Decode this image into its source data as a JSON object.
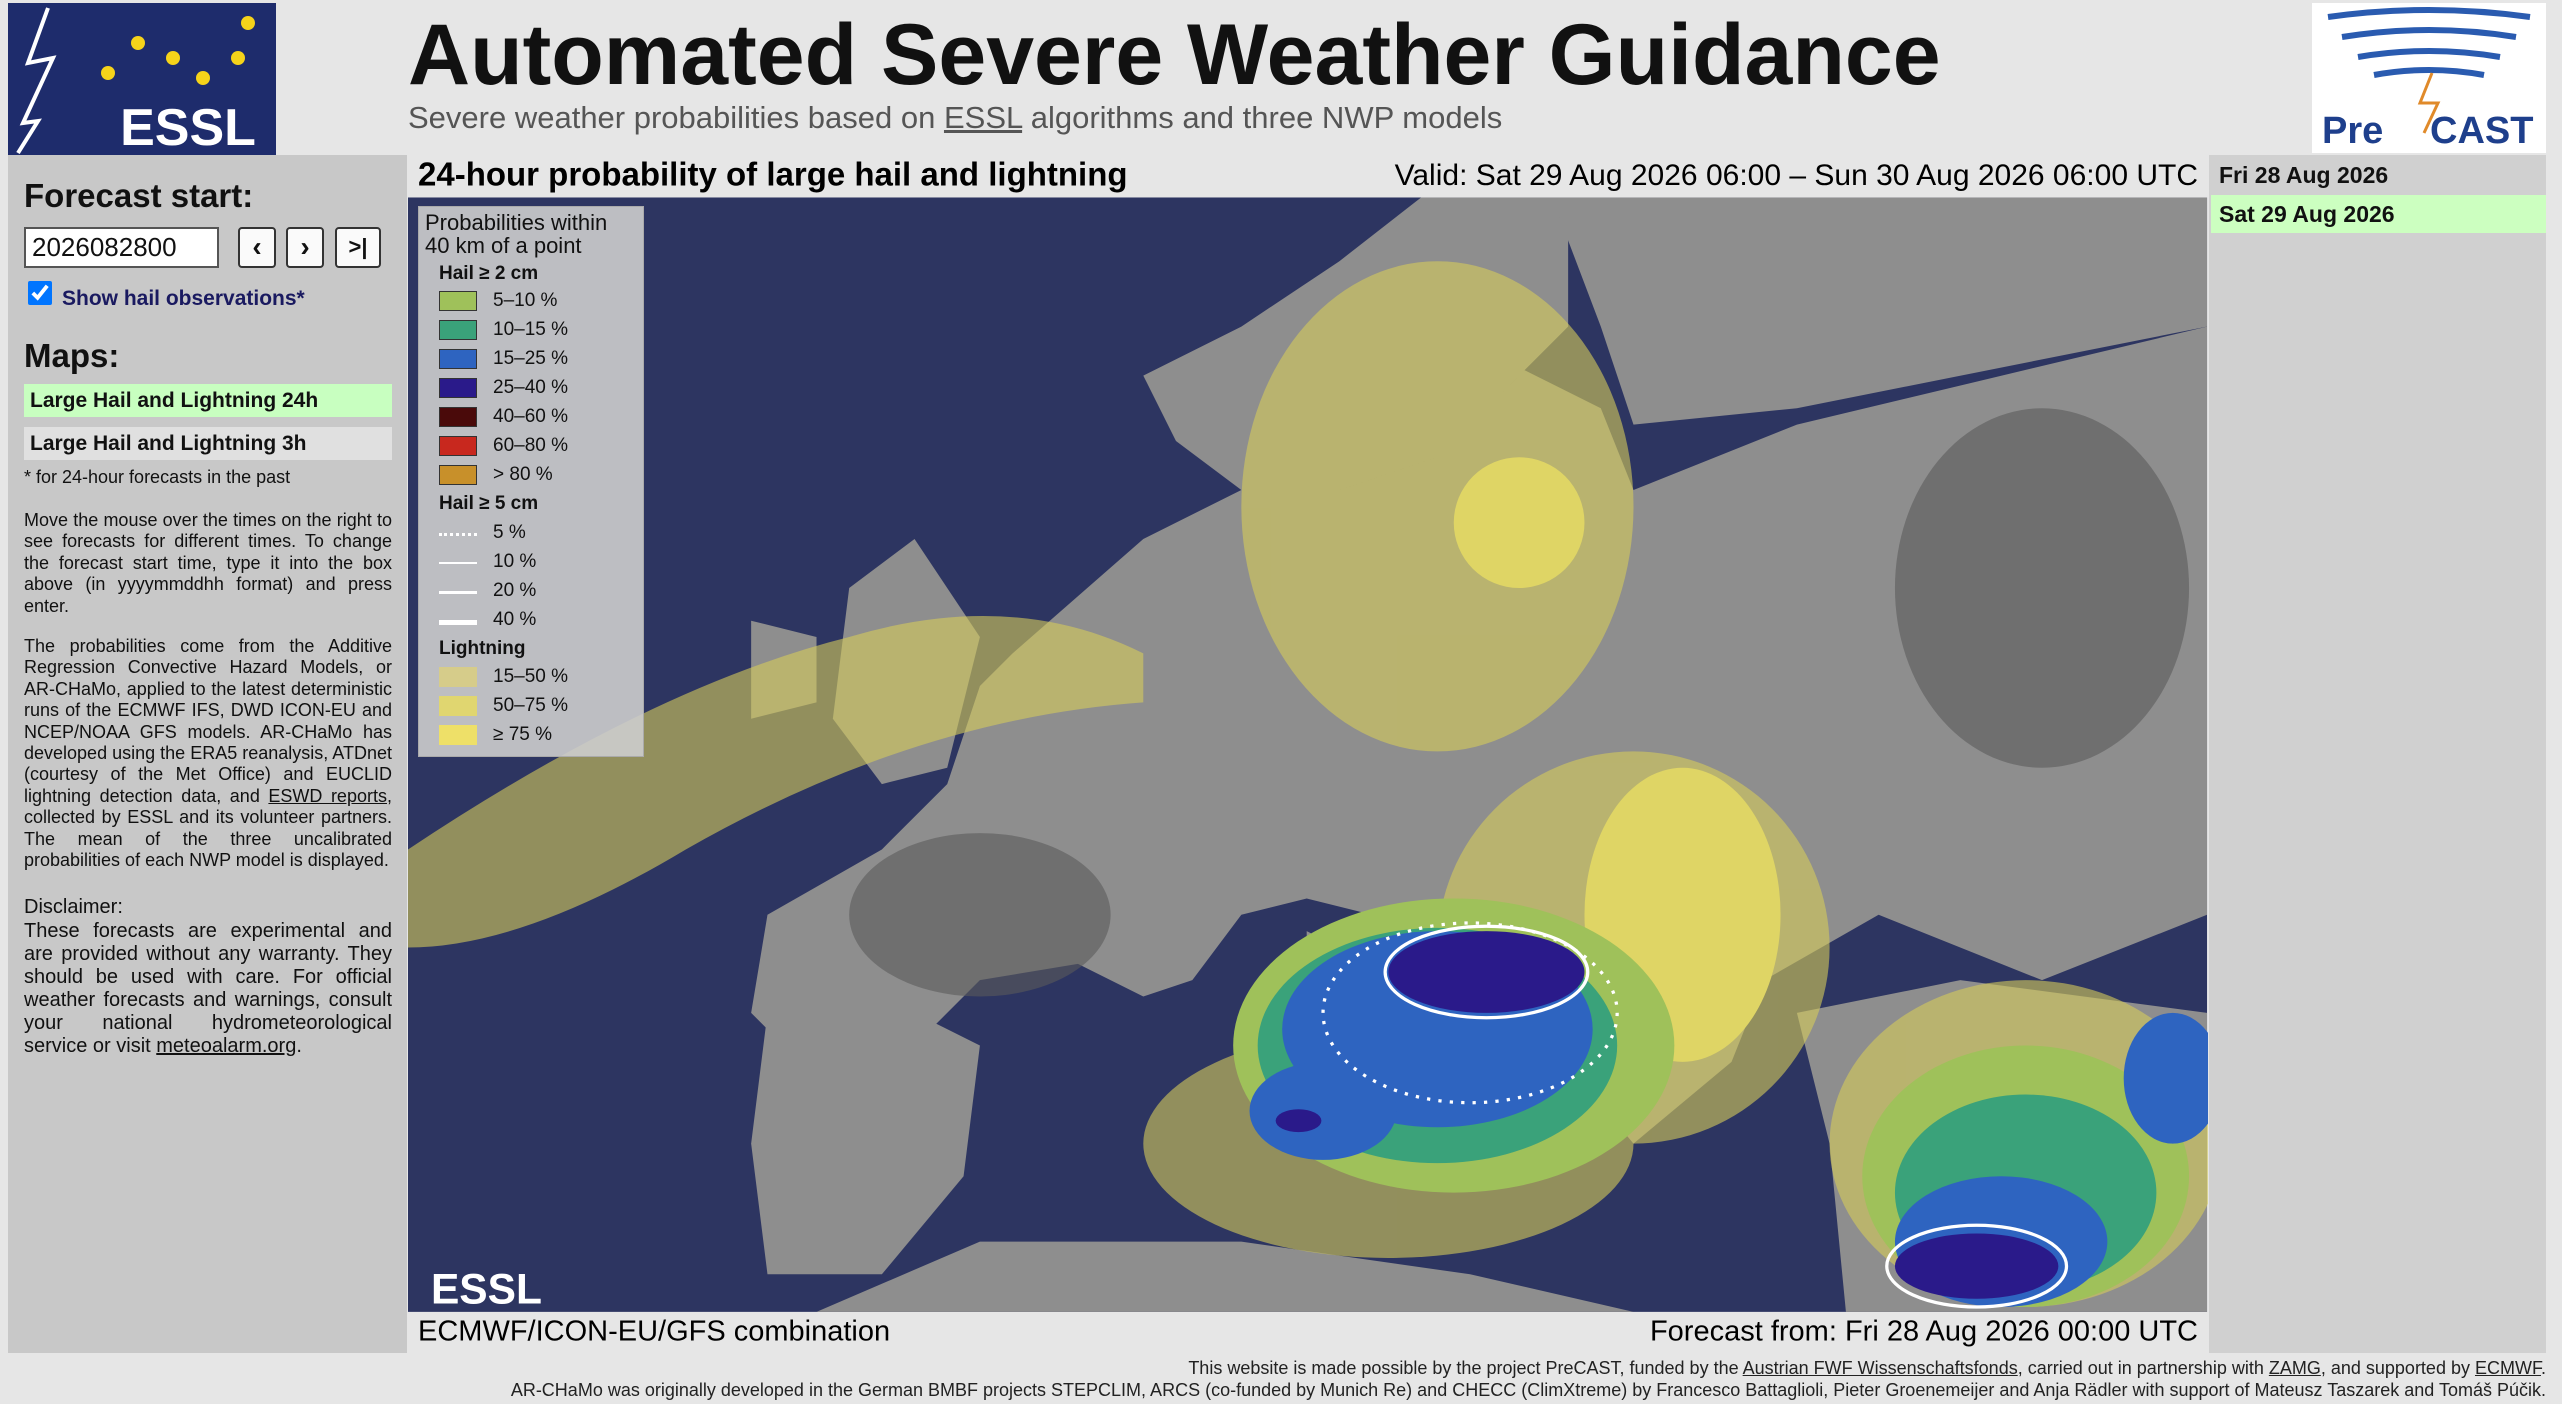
{
  "header": {
    "title": "Automated Severe Weather Guidance",
    "subtitle": {
      "before": "Severe weather probabilities based on",
      "link": "ESSL",
      "after": "algorithms and three NWP models"
    },
    "logo_left": "ESSL",
    "logo_right": {
      "first": "Pre",
      "second": "CAST"
    }
  },
  "sidebar": {
    "forecast_start_label": "Forecast start:",
    "forecast_start_value": "2026082800",
    "nav_buttons": [
      "‹",
      "›",
      ">|"
    ],
    "show_hail_label": "Show hail observations*",
    "maps_heading": "Maps:",
    "maps": [
      "Large Hail and Lightning 24h",
      "Large Hail and Lightning 3h"
    ],
    "footnote": "* for 24-hour forecasts in the past",
    "help_text": "Move the mouse over the times on the right to see forecasts for different times. To change the forecast start time, type it into the box above (in yyyymmddhh format) and press enter.",
    "about": {
      "before": "The probabilities come from the Additive Regression Convective Hazard Models, or AR-CHaMo, applied to the latest deterministic runs of the ECMWF IFS, DWD ICON-EU and NCEP/NOAA GFS models. AR-CHaMo has developed using the ERA5 reanalysis, ATDnet (courtesy of the Met Office) and EUCLID lightning detection data, and",
      "link": "ESWD reports",
      "after": ", collected by ESSL and its volunteer partners. The mean of the three uncalibrated probabilities of each NWP model is displayed."
    },
    "disclaimer_heading": "Disclaimer:",
    "disclaimer": {
      "before": "These forecasts are experimental and are provided without any warranty. They should be used with care. For official weather forecasts and warnings, consult your national hydrometeorological service or visit",
      "link": "meteoalarm.org",
      "after": "."
    }
  },
  "map": {
    "title": "24-hour probability of large hail and lightning",
    "valid": "Valid: Sat 29 Aug 2026 06:00 – Sun 30 Aug 2026 06:00 UTC",
    "model": "ECMWF/ICON-EU/GFS combination",
    "forecast_from": "Forecast from: Fri 28 Aug 2026 00:00 UTC",
    "watermark": "ESSL",
    "legend": {
      "title": [
        "Probabilities within",
        "40 km of a point"
      ],
      "hail2": {
        "heading": "Hail ≥ 2 cm",
        "items": [
          "5–10 %",
          "10–15 %",
          "15–25 %",
          "25–40 %",
          "40–60 %",
          "60–80 %",
          "> 80 %"
        ]
      },
      "hail5": {
        "heading": "Hail ≥ 5 cm",
        "items": [
          "5 %",
          "10 %",
          "20 %",
          "40 %"
        ]
      },
      "lightning": {
        "heading": "Lightning",
        "items": [
          "15–50 %",
          "50–75 %",
          "≥ 75 %"
        ]
      }
    }
  },
  "dates": [
    "Fri 28 Aug 2026",
    "Sat 29 Aug 2026"
  ],
  "footer": {
    "line1": {
      "a": "This website is made possible by the project PreCAST, funded by the",
      "link1": "Austrian FWF Wissenschaftsfonds",
      "b": ", carried out in partnership with",
      "link2": "ZAMG",
      "c": ", and supported by",
      "link3": "ECMWF",
      "d": "."
    },
    "line2": "AR-CHaMo was originally developed in the German BMBF projects STEPCLIM, ARCS (co-funded by Munich Re) and CHECC (ClimXtreme) by Francesco Battaglioli, Pieter Groenemeijer and Anja Rädler with support of Mateusz Taszarek and Tomáš Púčik."
  }
}
